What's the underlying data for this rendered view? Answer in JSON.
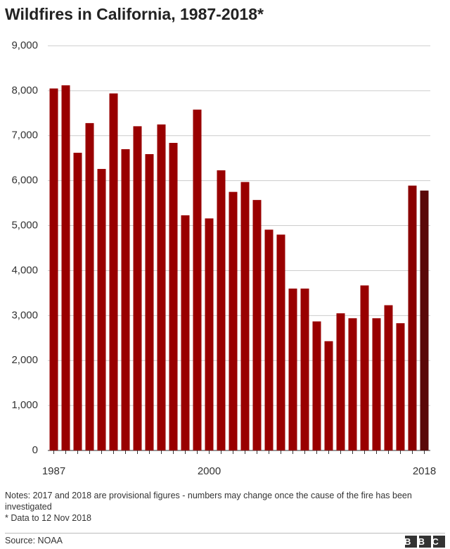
{
  "chart_data": {
    "type": "bar",
    "title": "Wildfires in California, 1987-2018*",
    "categories": [
      "1987",
      null,
      null,
      null,
      null,
      null,
      null,
      null,
      null,
      null,
      null,
      null,
      null,
      "2000",
      null,
      null,
      null,
      null,
      null,
      null,
      null,
      null,
      null,
      null,
      null,
      null,
      null,
      null,
      null,
      null,
      null,
      "2018"
    ],
    "values": [
      8050,
      8120,
      6620,
      7280,
      6260,
      7940,
      6700,
      7210,
      6590,
      7250,
      6840,
      5230,
      7580,
      5160,
      6230,
      5750,
      5970,
      5570,
      4910,
      4800,
      3600,
      3600,
      2870,
      2430,
      3050,
      2940,
      3670,
      2940,
      3230,
      2830,
      5890,
      5780
    ],
    "colors": [
      "#990000",
      "#990000",
      "#990000",
      "#990000",
      "#990000",
      "#990000",
      "#990000",
      "#990000",
      "#990000",
      "#990000",
      "#990000",
      "#990000",
      "#990000",
      "#990000",
      "#990000",
      "#990000",
      "#990000",
      "#990000",
      "#990000",
      "#990000",
      "#990000",
      "#990000",
      "#990000",
      "#990000",
      "#990000",
      "#990000",
      "#990000",
      "#990000",
      "#990000",
      "#990000",
      "#8a0000",
      "#5a0808"
    ],
    "ylim": [
      0,
      9000
    ],
    "yticks": [
      0,
      {
        "value": 1000,
        "label": "1,000"
      },
      {
        "value": 2000,
        "label": "2,000"
      },
      {
        "value": 3000,
        "label": "3,000"
      },
      {
        "value": 4000,
        "label": "4,000"
      },
      {
        "value": 5000,
        "label": "5,000"
      },
      {
        "value": 6000,
        "label": "6,000"
      },
      {
        "value": 7000,
        "label": "7,000"
      },
      {
        "value": 8000,
        "label": "8,000"
      },
      {
        "value": 9000,
        "label": "9,000"
      }
    ],
    "grid": true,
    "notes": [
      "Notes: 2017 and 2018 are provisional figures - numbers may change once the cause of the fire has been investigated",
      "* Data to 12 Nov 2018"
    ],
    "source": "Source: NOAA",
    "logo": "BBC"
  }
}
